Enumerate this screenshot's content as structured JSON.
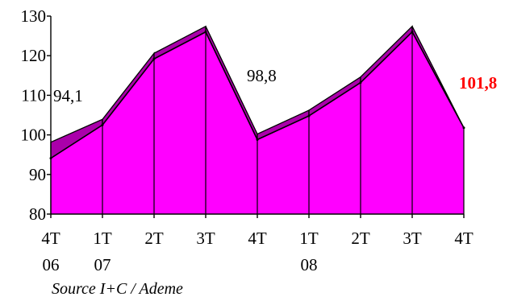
{
  "chart_data": {
    "type": "area",
    "style": "3d",
    "categories": [
      {
        "line1": "4T",
        "line2": "06"
      },
      {
        "line1": "1T",
        "line2": "07"
      },
      {
        "line1": "2T",
        "line2": ""
      },
      {
        "line1": "3T",
        "line2": ""
      },
      {
        "line1": "4T",
        "line2": ""
      },
      {
        "line1": "1T",
        "line2": "08"
      },
      {
        "line1": "2T",
        "line2": ""
      },
      {
        "line1": "3T",
        "line2": ""
      },
      {
        "line1": "4T",
        "line2": ""
      }
    ],
    "series": [
      {
        "values": [
          94.1,
          102.5,
          119.2,
          126.0,
          98.8,
          104.8,
          113.2,
          126.0,
          101.8
        ]
      }
    ],
    "ylim": [
      80,
      130
    ],
    "yticks": [
      80,
      90,
      100,
      110,
      120,
      130
    ],
    "annotations": [
      {
        "index": 0,
        "text": "94,1",
        "highlight": false
      },
      {
        "index": 4,
        "text": "98,8",
        "highlight": false
      },
      {
        "index": 8,
        "text": "101,8",
        "highlight": true
      }
    ],
    "colors": {
      "fill": "#FF00FF",
      "top": "#AA00AA",
      "highlight": "#FF0000",
      "line": "#000000"
    },
    "grid": false,
    "legend": "none"
  },
  "source": "Source I+C / Ademe"
}
